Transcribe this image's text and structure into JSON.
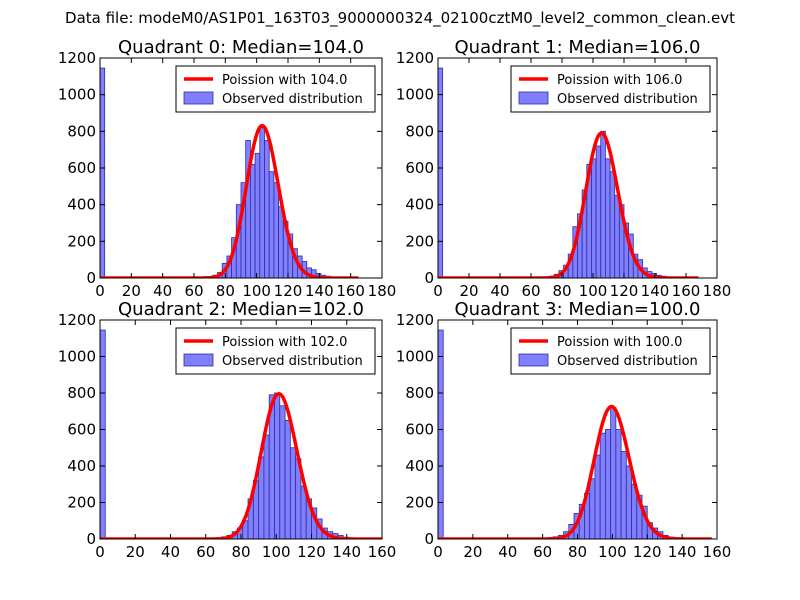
{
  "figure": {
    "title": "Data file: modeM0/AS1P01_163T03_9000000324_02100cztM0_level2_common_clean.evt"
  },
  "colors": {
    "curve": "#ff0000",
    "bar_fill": "#7f7fff",
    "bar_edge": "#2e2e9e",
    "axes": "#000000"
  },
  "chart_data": [
    {
      "type": "bar",
      "title": "Quadrant 0: Median=104.0",
      "xlim": [
        0,
        180
      ],
      "ylim": [
        0,
        1200
      ],
      "xticks": [
        0,
        20,
        40,
        60,
        80,
        100,
        120,
        140,
        160,
        180
      ],
      "yticks": [
        0,
        200,
        400,
        600,
        800,
        1000,
        1200
      ],
      "legend": {
        "position": "top-right",
        "entries": [
          "Poission with 104.0",
          "Observed distribution"
        ]
      },
      "bin_width": 3,
      "hist": [
        [
          0,
          1145
        ],
        [
          66,
          5
        ],
        [
          69,
          8
        ],
        [
          72,
          15
        ],
        [
          75,
          30
        ],
        [
          78,
          80
        ],
        [
          81,
          120
        ],
        [
          84,
          220
        ],
        [
          87,
          400
        ],
        [
          90,
          520
        ],
        [
          93,
          750
        ],
        [
          96,
          620
        ],
        [
          99,
          680
        ],
        [
          102,
          820
        ],
        [
          105,
          750
        ],
        [
          108,
          580
        ],
        [
          111,
          520
        ],
        [
          114,
          390
        ],
        [
          117,
          310
        ],
        [
          120,
          240
        ],
        [
          123,
          160
        ],
        [
          126,
          120
        ],
        [
          129,
          90
        ],
        [
          132,
          55
        ],
        [
          135,
          45
        ],
        [
          138,
          25
        ],
        [
          141,
          15
        ],
        [
          144,
          10
        ],
        [
          147,
          6
        ],
        [
          150,
          4
        ]
      ],
      "curve": {
        "name": "Poission with 104.0",
        "mean": 104,
        "peak": 830,
        "x_range": [
          0,
          165
        ]
      }
    },
    {
      "type": "bar",
      "title": "Quadrant 1: Median=106.0",
      "xlim": [
        0,
        180
      ],
      "ylim": [
        0,
        1200
      ],
      "xticks": [
        0,
        20,
        40,
        60,
        80,
        100,
        120,
        140,
        160,
        180
      ],
      "yticks": [
        0,
        200,
        400,
        600,
        800,
        1000,
        1200
      ],
      "legend": {
        "position": "top-right",
        "entries": [
          "Poission with 106.0",
          "Observed distribution"
        ]
      },
      "bin_width": 3,
      "hist": [
        [
          0,
          1145
        ],
        [
          69,
          5
        ],
        [
          72,
          10
        ],
        [
          75,
          20
        ],
        [
          78,
          40
        ],
        [
          81,
          70
        ],
        [
          84,
          130
        ],
        [
          87,
          280
        ],
        [
          90,
          350
        ],
        [
          93,
          480
        ],
        [
          96,
          620
        ],
        [
          99,
          650
        ],
        [
          102,
          720
        ],
        [
          105,
          800
        ],
        [
          108,
          650
        ],
        [
          111,
          580
        ],
        [
          114,
          450
        ],
        [
          117,
          400
        ],
        [
          120,
          300
        ],
        [
          123,
          240
        ],
        [
          126,
          130
        ],
        [
          129,
          100
        ],
        [
          132,
          55
        ],
        [
          135,
          35
        ],
        [
          138,
          25
        ],
        [
          141,
          15
        ],
        [
          144,
          10
        ],
        [
          147,
          6
        ]
      ],
      "curve": {
        "name": "Poission with 106.0",
        "mean": 106,
        "peak": 790,
        "x_range": [
          0,
          168
        ]
      }
    },
    {
      "type": "bar",
      "title": "Quadrant 2: Median=102.0",
      "xlim": [
        0,
        160
      ],
      "ylim": [
        0,
        1200
      ],
      "xticks": [
        0,
        20,
        40,
        60,
        80,
        100,
        120,
        140,
        160
      ],
      "yticks": [
        0,
        200,
        400,
        600,
        800,
        1000,
        1200
      ],
      "legend": {
        "position": "top-right",
        "entries": [
          "Poission with 102.0",
          "Observed distribution"
        ]
      },
      "bin_width": 3,
      "hist": [
        [
          0,
          1145
        ],
        [
          63,
          5
        ],
        [
          66,
          8
        ],
        [
          69,
          12
        ],
        [
          72,
          20
        ],
        [
          75,
          40
        ],
        [
          78,
          60
        ],
        [
          81,
          100
        ],
        [
          84,
          220
        ],
        [
          87,
          320
        ],
        [
          90,
          450
        ],
        [
          93,
          570
        ],
        [
          96,
          790
        ],
        [
          99,
          800
        ],
        [
          102,
          730
        ],
        [
          105,
          650
        ],
        [
          108,
          500
        ],
        [
          111,
          440
        ],
        [
          114,
          290
        ],
        [
          117,
          220
        ],
        [
          120,
          170
        ],
        [
          123,
          110
        ],
        [
          126,
          60
        ],
        [
          129,
          40
        ],
        [
          132,
          30
        ],
        [
          135,
          20
        ],
        [
          138,
          10
        ],
        [
          141,
          5
        ]
      ],
      "curve": {
        "name": "Poission with 102.0",
        "mean": 102,
        "peak": 795,
        "x_range": [
          0,
          160
        ]
      }
    },
    {
      "type": "bar",
      "title": "Quadrant 3: Median=100.0",
      "xlim": [
        0,
        160
      ],
      "ylim": [
        0,
        1200
      ],
      "xticks": [
        0,
        20,
        40,
        60,
        80,
        100,
        120,
        140,
        160
      ],
      "yticks": [
        0,
        200,
        400,
        600,
        800,
        1000,
        1200
      ],
      "legend": {
        "position": "top-right",
        "entries": [
          "Poission with 100.0",
          "Observed distribution"
        ]
      },
      "bin_width": 3,
      "hist": [
        [
          0,
          1145
        ],
        [
          60,
          5
        ],
        [
          63,
          8
        ],
        [
          66,
          12
        ],
        [
          69,
          20
        ],
        [
          72,
          40
        ],
        [
          75,
          80
        ],
        [
          78,
          140
        ],
        [
          81,
          190
        ],
        [
          84,
          250
        ],
        [
          87,
          330
        ],
        [
          90,
          460
        ],
        [
          93,
          580
        ],
        [
          96,
          600
        ],
        [
          99,
          720
        ],
        [
          102,
          600
        ],
        [
          105,
          480
        ],
        [
          108,
          400
        ],
        [
          111,
          300
        ],
        [
          114,
          240
        ],
        [
          117,
          180
        ],
        [
          120,
          90
        ],
        [
          123,
          60
        ],
        [
          126,
          40
        ],
        [
          129,
          20
        ],
        [
          132,
          10
        ],
        [
          135,
          5
        ]
      ],
      "curve": {
        "name": "Poission with 100.0",
        "mean": 100,
        "peak": 725,
        "x_range": [
          0,
          157
        ]
      }
    }
  ]
}
